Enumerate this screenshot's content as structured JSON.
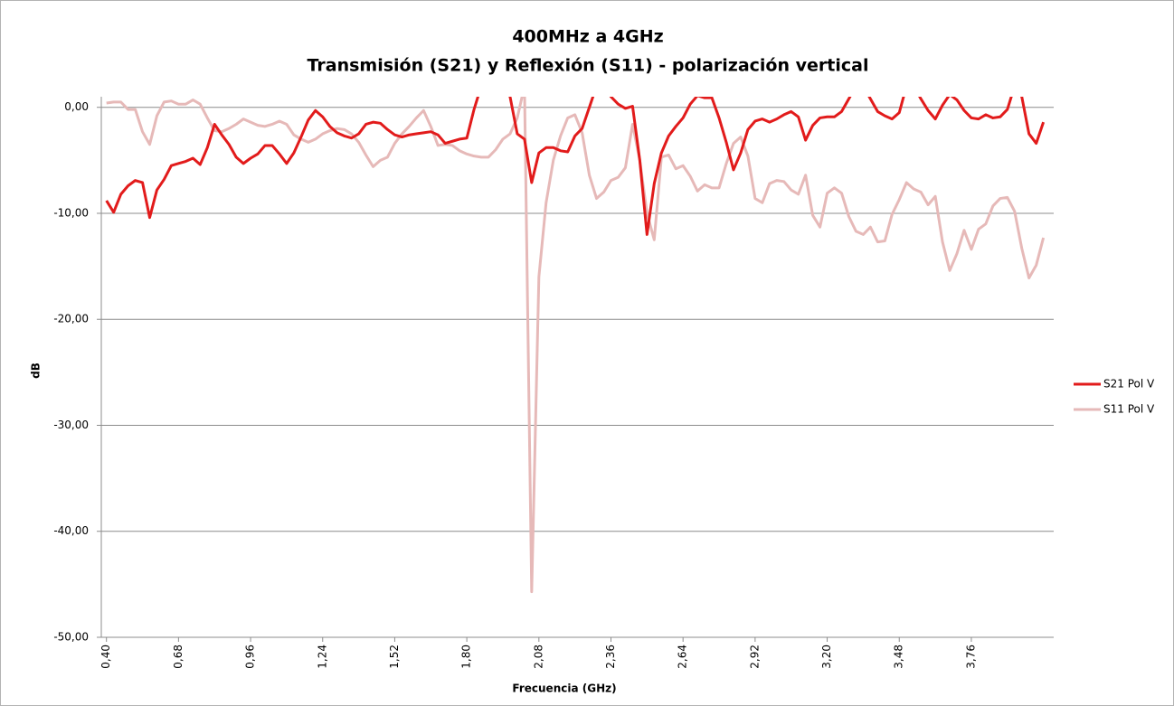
{
  "chart_data": {
    "type": "line",
    "title": "400MHz a 4GHz",
    "subtitle": "Transmisión (S21) y Reflexión (S11) - polarización vertical",
    "x_label": "Frecuencia (GHz)",
    "y_label": "dB",
    "x": [
      0.4,
      0.428,
      0.456,
      0.484,
      0.512,
      0.54,
      0.568,
      0.596,
      0.624,
      0.652,
      0.68,
      0.708,
      0.736,
      0.764,
      0.792,
      0.82,
      0.848,
      0.876,
      0.904,
      0.932,
      0.96,
      0.988,
      1.016,
      1.044,
      1.072,
      1.1,
      1.128,
      1.156,
      1.184,
      1.212,
      1.24,
      1.268,
      1.296,
      1.324,
      1.352,
      1.38,
      1.408,
      1.436,
      1.464,
      1.492,
      1.52,
      1.548,
      1.576,
      1.604,
      1.632,
      1.66,
      1.688,
      1.716,
      1.744,
      1.772,
      1.8,
      1.828,
      1.856,
      1.884,
      1.912,
      1.94,
      1.968,
      1.996,
      2.024,
      2.052,
      2.08,
      2.108,
      2.136,
      2.164,
      2.192,
      2.22,
      2.248,
      2.276,
      2.304,
      2.332,
      2.36,
      2.388,
      2.416,
      2.444,
      2.472,
      2.5,
      2.528,
      2.556,
      2.584,
      2.612,
      2.64,
      2.668,
      2.696,
      2.724,
      2.752,
      2.78,
      2.808,
      2.836,
      2.864,
      2.892,
      2.92,
      2.948,
      2.976,
      3.004,
      3.032,
      3.06,
      3.088,
      3.116,
      3.144,
      3.172,
      3.2,
      3.228,
      3.256,
      3.284,
      3.312,
      3.34,
      3.368,
      3.396,
      3.424,
      3.452,
      3.48,
      3.508,
      3.536,
      3.564,
      3.592,
      3.62,
      3.648,
      3.676,
      3.704,
      3.732,
      3.76,
      3.788,
      3.816,
      3.844,
      3.872,
      3.9,
      3.928,
      3.956,
      3.984,
      4.012,
      4.04
    ],
    "series": [
      {
        "name": "S21 Pol V",
        "color": "#e21b1b",
        "values": [
          -8.8,
          -9.9,
          -8.2,
          -7.4,
          -6.9,
          -7.1,
          -10.4,
          -7.8,
          -6.8,
          -5.5,
          -5.3,
          -5.1,
          -4.8,
          -5.4,
          -3.8,
          -1.6,
          -2.6,
          -3.5,
          -4.7,
          -5.3,
          -4.8,
          -4.4,
          -3.6,
          -3.6,
          -4.4,
          -5.3,
          -4.3,
          -2.8,
          -1.2,
          -0.3,
          -0.9,
          -1.8,
          -2.4,
          -2.7,
          -2.9,
          -2.5,
          -1.6,
          -1.4,
          -1.5,
          -2.1,
          -2.6,
          -2.8,
          -2.6,
          -2.5,
          -2.4,
          -2.3,
          -2.6,
          -3.4,
          -3.2,
          -3.0,
          -2.9,
          -0.2,
          2,
          3,
          3,
          2,
          1,
          -2.5,
          -3.0,
          -7.1,
          -4.3,
          -3.8,
          -3.8,
          -4.1,
          -4.2,
          -2.7,
          -2.0,
          0.0,
          2,
          2,
          1,
          0.3,
          -0.1,
          0.1,
          -5,
          -12.0,
          -7.2,
          -4.3,
          -2.7,
          -1.8,
          -1.0,
          0.3,
          1.1,
          0.9,
          0.9,
          -1.0,
          -3.3,
          -5.9,
          -4.3,
          -2.1,
          -1.3,
          -1.1,
          -1.4,
          -1.1,
          -0.7,
          -0.4,
          -0.9,
          -3.1,
          -1.7,
          -1.0,
          -0.9,
          -0.9,
          -0.4,
          0.8,
          2,
          2,
          0.8,
          -0.4,
          -0.8,
          -1.1,
          -0.5,
          2,
          2,
          0.8,
          -0.3,
          -1.1,
          0.2,
          1.2,
          0.7,
          -0.3,
          -1.0,
          -1.1,
          -0.7,
          -1.0,
          -0.9,
          -0.2,
          2,
          1,
          -2.5,
          -3.4,
          -1.4
        ]
      },
      {
        "name": "S11 Pol V",
        "color": "#e6b9b8",
        "values": [
          0.4,
          0.5,
          0.5,
          -0.2,
          -0.2,
          -2.3,
          -3.5,
          -0.8,
          0.5,
          0.6,
          0.3,
          0.3,
          0.7,
          0.3,
          -1.0,
          -2.2,
          -2.3,
          -2.0,
          -1.6,
          -1.1,
          -1.4,
          -1.7,
          -1.8,
          -1.6,
          -1.3,
          -1.6,
          -2.6,
          -3.0,
          -3.3,
          -3.0,
          -2.5,
          -2.2,
          -2.0,
          -2.1,
          -2.5,
          -3.3,
          -4.5,
          -5.6,
          -5.0,
          -4.7,
          -3.4,
          -2.5,
          -1.8,
          -1.0,
          -0.3,
          -1.8,
          -3.6,
          -3.5,
          -3.6,
          -4.1,
          -4.4,
          -4.6,
          -4.7,
          -4.7,
          -4.0,
          -3.0,
          -2.5,
          -1,
          2,
          -45.7,
          -16,
          -9,
          -5,
          -2.7,
          -1.0,
          -0.7,
          -2.4,
          -6.4,
          -8.6,
          -8.0,
          -6.9,
          -6.6,
          -5.7,
          -1.6,
          -5,
          -10,
          -12.5,
          -4.7,
          -4.5,
          -5.8,
          -5.5,
          -6.5,
          -7.9,
          -7.3,
          -7.6,
          -7.6,
          -5.3,
          -3.4,
          -2.8,
          -4.6,
          -8.6,
          -9.0,
          -7.2,
          -6.9,
          -7.0,
          -7.8,
          -8.2,
          -6.4,
          -10.2,
          -11.3,
          -8.1,
          -7.6,
          -8.1,
          -10.3,
          -11.7,
          -12.0,
          -11.3,
          -12.7,
          -12.6,
          -10.1,
          -8.7,
          -7.1,
          -7.7,
          -8.0,
          -9.2,
          -8.4,
          -12.7,
          -15.4,
          -13.8,
          -11.6,
          -13.4,
          -11.5,
          -11.0,
          -9.3,
          -8.6,
          -8.5,
          -9.8,
          -13.3,
          -16.1,
          -14.9,
          -12.3
        ]
      }
    ],
    "xlim": [
      0.38,
      4.08
    ],
    "xticks": [
      {
        "value": 0.4,
        "label": "0,40"
      },
      {
        "value": 0.68,
        "label": "0,68"
      },
      {
        "value": 0.96,
        "label": "0,96"
      },
      {
        "value": 1.24,
        "label": "1,24"
      },
      {
        "value": 1.52,
        "label": "1,52"
      },
      {
        "value": 1.8,
        "label": "1,80"
      },
      {
        "value": 2.08,
        "label": "2,08"
      },
      {
        "value": 2.36,
        "label": "2,36"
      },
      {
        "value": 2.64,
        "label": "2,64"
      },
      {
        "value": 2.92,
        "label": "2,92"
      },
      {
        "value": 3.2,
        "label": "3,20"
      },
      {
        "value": 3.48,
        "label": "3,48"
      },
      {
        "value": 3.76,
        "label": "3,76"
      }
    ],
    "ylim": [
      -50,
      1
    ],
    "yticks": [
      {
        "value": -50,
        "label": "-50,00"
      },
      {
        "value": -40,
        "label": "-40,00"
      },
      {
        "value": -30,
        "label": "-30,00"
      },
      {
        "value": -20,
        "label": "-20,00"
      },
      {
        "value": -10,
        "label": "-10,00"
      },
      {
        "value": 0,
        "label": "0,00"
      }
    ],
    "grid": true,
    "legend": "right"
  }
}
